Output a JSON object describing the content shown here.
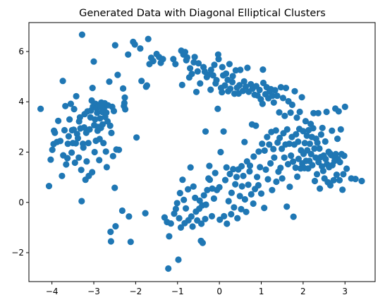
{
  "chart_data": {
    "type": "scatter",
    "title": "Generated Data with Diagonal Elliptical Clusters",
    "xlabel": "",
    "ylabel": "",
    "xlim": [
      -4.55,
      3.72
    ],
    "ylim": [
      -3.15,
      7.15
    ],
    "xticks": [
      -4,
      -3,
      -2,
      -1,
      0,
      1,
      2,
      3
    ],
    "yticks": [
      -2,
      0,
      2,
      4,
      6
    ],
    "xtick_labels": [
      "−4",
      "−3",
      "−2",
      "−1",
      "0",
      "1",
      "2",
      "3"
    ],
    "ytick_labels": [
      "−2",
      "0",
      "2",
      "4",
      "6"
    ],
    "grid": false,
    "marker_color": "#1f77b4",
    "points": [
      [
        -4.27,
        3.72
      ],
      [
        -4.07,
        0.65
      ],
      [
        -4.03,
        1.7
      ],
      [
        -3.99,
        2.09
      ],
      [
        -3.96,
        2.32
      ],
      [
        -3.95,
        2.85
      ],
      [
        -3.93,
        2.77
      ],
      [
        -3.88,
        2.4
      ],
      [
        -3.85,
        3.24
      ],
      [
        -3.8,
        2.44
      ],
      [
        -3.76,
        1.05
      ],
      [
        -3.74,
        4.83
      ],
      [
        -3.73,
        1.87
      ],
      [
        -3.7,
        2.87
      ],
      [
        -3.68,
        3.83
      ],
      [
        -3.66,
        1.51
      ],
      [
        -3.63,
        1.76
      ],
      [
        -3.62,
        2.33
      ],
      [
        -3.6,
        2.63
      ],
      [
        -3.58,
        3.3
      ],
      [
        -3.55,
        3.92
      ],
      [
        -3.53,
        1.98
      ],
      [
        -3.52,
        2.87
      ],
      [
        -3.5,
        2.36
      ],
      [
        -3.48,
        2.89
      ],
      [
        -3.47,
        3.71
      ],
      [
        -3.45,
        1.58
      ],
      [
        -3.43,
        2.35
      ],
      [
        -3.42,
        4.22
      ],
      [
        -3.4,
        2.72
      ],
      [
        -3.38,
        2.55
      ],
      [
        -3.36,
        1.78
      ],
      [
        -3.35,
        3.22
      ],
      [
        -3.33,
        3.38
      ],
      [
        -3.32,
        2.94
      ],
      [
        -3.3,
        1.29
      ],
      [
        -3.29,
        0.05
      ],
      [
        -3.28,
        6.67
      ],
      [
        -3.26,
        2.33
      ],
      [
        -3.25,
        2.18
      ],
      [
        -3.23,
        2.98
      ],
      [
        -3.22,
        3.51
      ],
      [
        -3.2,
        0.9
      ],
      [
        -3.18,
        2.77
      ],
      [
        -3.17,
        1.63
      ],
      [
        -3.15,
        3.62
      ],
      [
        -3.13,
        2.36
      ],
      [
        -3.12,
        1.05
      ],
      [
        -3.1,
        2.9
      ],
      [
        -3.08,
        3.38
      ],
      [
        -3.07,
        3.65
      ],
      [
        -3.05,
        4.05
      ],
      [
        -3.04,
        1.2
      ],
      [
        -3.03,
        4.55
      ],
      [
        -3.02,
        3.81
      ],
      [
        -3.0,
        5.6
      ],
      [
        -2.99,
        3.07
      ],
      [
        -2.98,
        2.0
      ],
      [
        -2.97,
        3.3
      ],
      [
        -2.96,
        3.92
      ],
      [
        -2.95,
        2.45
      ],
      [
        -2.93,
        3.74
      ],
      [
        -2.92,
        3.56
      ],
      [
        -2.91,
        2.85
      ],
      [
        -2.9,
        3.0
      ],
      [
        -2.88,
        3.87
      ],
      [
        -2.87,
        1.68
      ],
      [
        -2.86,
        2.52
      ],
      [
        -2.85,
        3.34
      ],
      [
        -2.84,
        3.8
      ],
      [
        -2.83,
        2.96
      ],
      [
        -2.82,
        3.97
      ],
      [
        -2.8,
        3.6
      ],
      [
        -2.79,
        3.1
      ],
      [
        -2.77,
        2.36
      ],
      [
        -2.76,
        3.73
      ],
      [
        -2.74,
        3.94
      ],
      [
        -2.73,
        3.4
      ],
      [
        -2.71,
        2.02
      ],
      [
        -2.7,
        3.57
      ],
      [
        -2.69,
        1.4
      ],
      [
        -2.67,
        3.22
      ],
      [
        -2.66,
        3.86
      ],
      [
        -2.63,
        4.8
      ],
      [
        -2.61,
        3.05
      ],
      [
        -2.6,
        -1.17
      ],
      [
        -2.59,
        -1.55
      ],
      [
        -2.58,
        2.76
      ],
      [
        -2.56,
        3.8
      ],
      [
        -2.54,
        1.84
      ],
      [
        -2.52,
        3.63
      ],
      [
        -2.5,
        0.58
      ],
      [
        -2.49,
        6.25
      ],
      [
        -2.48,
        -0.95
      ],
      [
        -2.46,
        2.1
      ],
      [
        -2.43,
        5.07
      ],
      [
        -2.4,
        2.09
      ],
      [
        -2.32,
        -0.33
      ],
      [
        -2.3,
        4.53
      ],
      [
        -2.28,
        3.83
      ],
      [
        -2.27,
        3.95
      ],
      [
        -2.26,
        4.17
      ],
      [
        -2.25,
        3.7
      ],
      [
        -2.18,
        5.88
      ],
      [
        -2.16,
        -0.56
      ],
      [
        -2.12,
        -1.57
      ],
      [
        -2.06,
        6.38
      ],
      [
        -2.02,
        6.28
      ],
      [
        -1.98,
        2.58
      ],
      [
        -1.89,
        6.12
      ],
      [
        -1.86,
        4.83
      ],
      [
        -1.77,
        -0.43
      ],
      [
        -1.75,
        4.6
      ],
      [
        -1.73,
        4.65
      ],
      [
        -1.7,
        6.5
      ],
      [
        -1.67,
        5.5
      ],
      [
        -1.63,
        5.75
      ],
      [
        -1.58,
        5.62
      ],
      [
        -1.5,
        5.9
      ],
      [
        -1.44,
        5.78
      ],
      [
        -1.4,
        5.55
      ],
      [
        -1.35,
        5.7
      ],
      [
        -1.31,
        -0.6
      ],
      [
        -1.25,
        -0.78
      ],
      [
        -1.22,
        -2.63
      ],
      [
        -1.2,
        -1.35
      ],
      [
        -1.16,
        -0.84
      ],
      [
        -1.1,
        5.7
      ],
      [
        -1.08,
        -0.45
      ],
      [
        -1.05,
        5.5
      ],
      [
        -1.04,
        -0.26
      ],
      [
        -1.01,
        -0.03
      ],
      [
        -0.98,
        -2.28
      ],
      [
        -0.96,
        -0.63
      ],
      [
        -0.94,
        0.37
      ],
      [
        -0.92,
        -1.0
      ],
      [
        -0.91,
        6.03
      ],
      [
        -0.89,
        4.67
      ],
      [
        -0.88,
        0.9
      ],
      [
        -0.86,
        5.88
      ],
      [
        -0.85,
        0.1
      ],
      [
        -0.83,
        -0.83
      ],
      [
        -0.82,
        5.98
      ],
      [
        -0.8,
        -0.24
      ],
      [
        -0.79,
        5.65
      ],
      [
        -0.77,
        5.76
      ],
      [
        -0.75,
        0.52
      ],
      [
        -0.74,
        -0.71
      ],
      [
        -0.72,
        4.97
      ],
      [
        -0.7,
        5.33
      ],
      [
        -0.69,
        1.39
      ],
      [
        -0.67,
        -0.56
      ],
      [
        -0.66,
        5.11
      ],
      [
        -0.64,
        -0.96
      ],
      [
        -0.62,
        0.63
      ],
      [
        -0.61,
        5.57
      ],
      [
        -0.59,
        5.78
      ],
      [
        -0.58,
        0.18
      ],
      [
        -0.56,
        -0.37
      ],
      [
        -0.55,
        4.39
      ],
      [
        -0.53,
        -0.72
      ],
      [
        -0.52,
        5.21
      ],
      [
        -0.5,
        5.53
      ],
      [
        -0.48,
        -0.25
      ],
      [
        -0.47,
        0.07
      ],
      [
        -0.46,
        4.73
      ],
      [
        -0.44,
        -1.53
      ],
      [
        -0.43,
        -0.85
      ],
      [
        -0.41,
        -0.12
      ],
      [
        -0.4,
        -1.61
      ],
      [
        -0.38,
        5.38
      ],
      [
        -0.37,
        0.28
      ],
      [
        -0.35,
        5.2
      ],
      [
        -0.34,
        -0.66
      ],
      [
        -0.33,
        2.82
      ],
      [
        -0.32,
        -0.09
      ],
      [
        -0.3,
        4.98
      ],
      [
        -0.29,
        0.49
      ],
      [
        -0.27,
        5.07
      ],
      [
        -0.26,
        0.95
      ],
      [
        -0.24,
        1.45
      ],
      [
        -0.23,
        0.9
      ],
      [
        -0.21,
        4.48
      ],
      [
        -0.2,
        5.27
      ],
      [
        -0.18,
        -0.55
      ],
      [
        -0.17,
        0.55
      ],
      [
        -0.15,
        5.05
      ],
      [
        -0.13,
        0.15
      ],
      [
        -0.12,
        5.47
      ],
      [
        -0.1,
        1.17
      ],
      [
        -0.09,
        4.73
      ],
      [
        -0.07,
        4.86
      ],
      [
        -0.06,
        0.49
      ],
      [
        -0.04,
        3.72
      ],
      [
        -0.03,
        5.88
      ],
      [
        -0.02,
        5.7
      ],
      [
        0.0,
        0.6
      ],
      [
        0.01,
        -0.69
      ],
      [
        0.03,
        2.0
      ],
      [
        0.04,
        4.55
      ],
      [
        0.06,
        4.38
      ],
      [
        0.07,
        5.38
      ],
      [
        0.09,
        5.05
      ],
      [
        0.1,
        2.82
      ],
      [
        0.11,
        -0.55
      ],
      [
        0.13,
        4.65
      ],
      [
        0.14,
        0.89
      ],
      [
        0.16,
        5.12
      ],
      [
        0.17,
        1.39
      ],
      [
        0.18,
        -0.85
      ],
      [
        0.2,
        4.87
      ],
      [
        0.21,
        4.42
      ],
      [
        0.22,
        0.05
      ],
      [
        0.24,
        5.5
      ],
      [
        0.25,
        1.13
      ],
      [
        0.26,
        4.52
      ],
      [
        0.28,
        -0.47
      ],
      [
        0.29,
        0.38
      ],
      [
        0.31,
        4.78
      ],
      [
        0.32,
        5.02
      ],
      [
        0.33,
        1.32
      ],
      [
        0.35,
        -0.2
      ],
      [
        0.36,
        4.32
      ],
      [
        0.38,
        0.72
      ],
      [
        0.39,
        5.25
      ],
      [
        0.41,
        1.01
      ],
      [
        0.42,
        4.56
      ],
      [
        0.43,
        -0.63
      ],
      [
        0.45,
        1.31
      ],
      [
        0.46,
        4.33
      ],
      [
        0.48,
        4.66
      ],
      [
        0.49,
        0.25
      ],
      [
        0.5,
        5.27
      ],
      [
        0.52,
        -0.27
      ],
      [
        0.53,
        1.44
      ],
      [
        0.54,
        0.64
      ],
      [
        0.56,
        4.43
      ],
      [
        0.57,
        1.05
      ],
      [
        0.59,
        4.81
      ],
      [
        0.6,
        2.4
      ],
      [
        0.61,
        0.12
      ],
      [
        0.63,
        4.6
      ],
      [
        0.64,
        -0.38
      ],
      [
        0.66,
        1.63
      ],
      [
        0.67,
        5.35
      ],
      [
        0.69,
        0.7
      ],
      [
        0.7,
        4.4
      ],
      [
        0.72,
        1.23
      ],
      [
        0.73,
        1.46
      ],
      [
        0.75,
        4.7
      ],
      [
        0.76,
        0.32
      ],
      [
        0.78,
        3.1
      ],
      [
        0.79,
        4.52
      ],
      [
        0.81,
        -0.05
      ],
      [
        0.82,
        1.82
      ],
      [
        0.84,
        4.28
      ],
      [
        0.85,
        0.53
      ],
      [
        0.87,
        3.05
      ],
      [
        0.88,
        4.62
      ],
      [
        0.9,
        1.01
      ],
      [
        0.91,
        4.25
      ],
      [
        0.93,
        0.68
      ],
      [
        0.94,
        2.02
      ],
      [
        0.96,
        4.47
      ],
      [
        0.97,
        1.4
      ],
      [
        0.99,
        4.1
      ],
      [
        1.0,
        0.35
      ],
      [
        1.02,
        2.33
      ],
      [
        1.03,
        3.92
      ],
      [
        1.04,
        5.28
      ],
      [
        1.05,
        4.75
      ],
      [
        1.07,
        -0.22
      ],
      [
        1.08,
        2.06
      ],
      [
        1.1,
        4.3
      ],
      [
        1.11,
        1.3
      ],
      [
        1.13,
        4.58
      ],
      [
        1.14,
        2.6
      ],
      [
        1.16,
        0.92
      ],
      [
        1.17,
        4.14
      ],
      [
        1.19,
        2.3
      ],
      [
        1.2,
        4.4
      ],
      [
        1.22,
        1.55
      ],
      [
        1.23,
        4.5
      ],
      [
        1.24,
        2.8
      ],
      [
        1.26,
        0.49
      ],
      [
        1.27,
        4.24
      ],
      [
        1.29,
        2.12
      ],
      [
        1.3,
        3.97
      ],
      [
        1.31,
        1.78
      ],
      [
        1.33,
        4.46
      ],
      [
        1.35,
        2.86
      ],
      [
        1.36,
        0.82
      ],
      [
        1.38,
        4.24
      ],
      [
        1.39,
        2.38
      ],
      [
        1.41,
        1.22
      ],
      [
        1.43,
        3.58
      ],
      [
        1.44,
        2.56
      ],
      [
        1.46,
        1.37
      ],
      [
        1.47,
        4.58
      ],
      [
        1.49,
        2.13
      ],
      [
        1.5,
        0.95
      ],
      [
        1.52,
        4.15
      ],
      [
        1.53,
        2.75
      ],
      [
        1.55,
        1.78
      ],
      [
        1.56,
        3.44
      ],
      [
        1.58,
        2.3
      ],
      [
        1.59,
        4.55
      ],
      [
        1.61,
        -0.17
      ],
      [
        1.62,
        2.9
      ],
      [
        1.64,
        1.52
      ],
      [
        1.65,
        4.02
      ],
      [
        1.67,
        2.33
      ],
      [
        1.68,
        0.62
      ],
      [
        1.7,
        3.57
      ],
      [
        1.71,
        1.86
      ],
      [
        1.73,
        2.6
      ],
      [
        1.74,
        3.88
      ],
      [
        1.76,
        1.62
      ],
      [
        1.77,
        -0.57
      ],
      [
        1.79,
        2.3
      ],
      [
        1.8,
        4.42
      ],
      [
        1.82,
        1.38
      ],
      [
        1.83,
        2.71
      ],
      [
        1.85,
        3.37
      ],
      [
        1.86,
        1.02
      ],
      [
        1.88,
        2.41
      ],
      [
        1.89,
        1.73
      ],
      [
        1.91,
        2.92
      ],
      [
        1.92,
        3.6
      ],
      [
        1.94,
        1.35
      ],
      [
        1.95,
        2.07
      ],
      [
        1.97,
        4.18
      ],
      [
        1.98,
        1.55
      ],
      [
        2.0,
        2.83
      ],
      [
        2.01,
        1.93
      ],
      [
        2.03,
        1.36
      ],
      [
        2.04,
        2.36
      ],
      [
        2.06,
        3.23
      ],
      [
        2.07,
        1.65
      ],
      [
        2.09,
        2.65
      ],
      [
        2.1,
        2.07
      ],
      [
        2.12,
        1.35
      ],
      [
        2.13,
        2.87
      ],
      [
        2.15,
        1.65
      ],
      [
        2.16,
        2.33
      ],
      [
        2.18,
        3.12
      ],
      [
        2.19,
        1.92
      ],
      [
        2.21,
        2.6
      ],
      [
        2.22,
        1.48
      ],
      [
        2.24,
        2.95
      ],
      [
        2.25,
        3.55
      ],
      [
        2.27,
        2.14
      ],
      [
        2.28,
        0.85
      ],
      [
        2.3,
        1.78
      ],
      [
        2.31,
        2.53
      ],
      [
        2.33,
        1.12
      ],
      [
        2.34,
        2.37
      ],
      [
        2.36,
        3.55
      ],
      [
        2.37,
        1.6
      ],
      [
        2.39,
        2.14
      ],
      [
        2.4,
        0.55
      ],
      [
        2.42,
        1.8
      ],
      [
        2.43,
        2.7
      ],
      [
        2.45,
        1.43
      ],
      [
        2.46,
        2.96
      ],
      [
        2.48,
        1.25
      ],
      [
        2.49,
        1.86
      ],
      [
        2.51,
        0.95
      ],
      [
        2.53,
        2.42
      ],
      [
        2.54,
        1.72
      ],
      [
        2.56,
        3.6
      ],
      [
        2.57,
        1.52
      ],
      [
        2.59,
        0.8
      ],
      [
        2.61,
        2.01
      ],
      [
        2.62,
        1.4
      ],
      [
        2.64,
        1.95
      ],
      [
        2.65,
        0.68
      ],
      [
        2.67,
        1.88
      ],
      [
        2.69,
        2.85
      ],
      [
        2.7,
        1.48
      ],
      [
        2.72,
        1.85
      ],
      [
        2.73,
        0.88
      ],
      [
        2.75,
        1.65
      ],
      [
        2.77,
        3.73
      ],
      [
        2.78,
        1.92
      ],
      [
        2.8,
        1.1
      ],
      [
        2.82,
        2.53
      ],
      [
        2.83,
        1.72
      ],
      [
        2.85,
        3.62
      ],
      [
        2.87,
        0.88
      ],
      [
        2.88,
        1.6
      ],
      [
        2.9,
        2.9
      ],
      [
        2.92,
        1.92
      ],
      [
        2.94,
        0.5
      ],
      [
        2.96,
        1.12
      ],
      [
        2.98,
        1.85
      ],
      [
        3.0,
        3.8
      ],
      [
        3.04,
        1.34
      ],
      [
        3.15,
        0.95
      ],
      [
        3.25,
        0.93
      ],
      [
        3.4,
        0.85
      ]
    ]
  }
}
